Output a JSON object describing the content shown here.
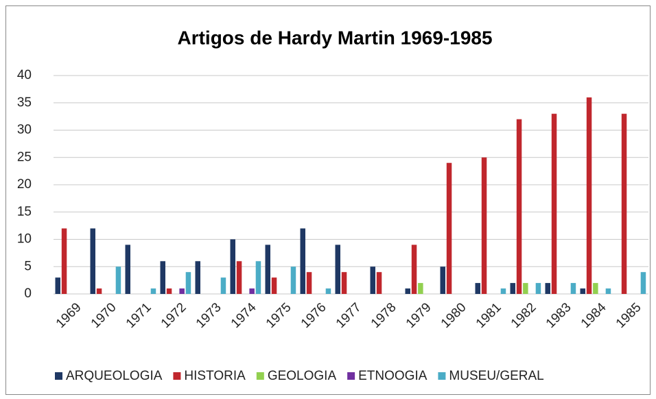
{
  "chart_data": {
    "type": "bar",
    "title": "Artigos de Hardy Martin  1969-1985",
    "categories": [
      "1969",
      "1970",
      "1971",
      "1972",
      "1973",
      "1974",
      "1975",
      "1976",
      "1977",
      "1978",
      "1979",
      "1980",
      "1981",
      "1982",
      "1983",
      "1984",
      "1985"
    ],
    "series": [
      {
        "name": "ARQUEOLOGIA",
        "color": "#1f3864",
        "values": [
          3,
          12,
          9,
          6,
          6,
          10,
          9,
          12,
          9,
          5,
          1,
          5,
          2,
          2,
          2,
          1,
          0
        ]
      },
      {
        "name": "HISTORIA",
        "color": "#c0272d",
        "values": [
          12,
          1,
          0,
          1,
          0,
          6,
          3,
          4,
          4,
          4,
          9,
          24,
          25,
          32,
          33,
          36,
          33
        ]
      },
      {
        "name": "GEOLOGIA",
        "color": "#92d050",
        "values": [
          0,
          0,
          0,
          0,
          0,
          0,
          0,
          0,
          0,
          0,
          2,
          0,
          0,
          2,
          0,
          2,
          0
        ]
      },
      {
        "name": "ETNOOGIA",
        "color": "#7030a0",
        "values": [
          0,
          0,
          0,
          1,
          0,
          1,
          0,
          0,
          0,
          0,
          0,
          0,
          0,
          0,
          0,
          0,
          0
        ]
      },
      {
        "name": "MUSEU/GERAL",
        "color": "#4bacc6",
        "values": [
          0,
          5,
          1,
          4,
          3,
          6,
          5,
          1,
          0,
          0,
          0,
          0,
          1,
          2,
          2,
          1,
          4
        ]
      }
    ],
    "ylim": [
      0,
      40
    ],
    "yticks": [
      0,
      5,
      10,
      15,
      20,
      25,
      30,
      35,
      40
    ],
    "grid": true,
    "legend": "bottom"
  }
}
